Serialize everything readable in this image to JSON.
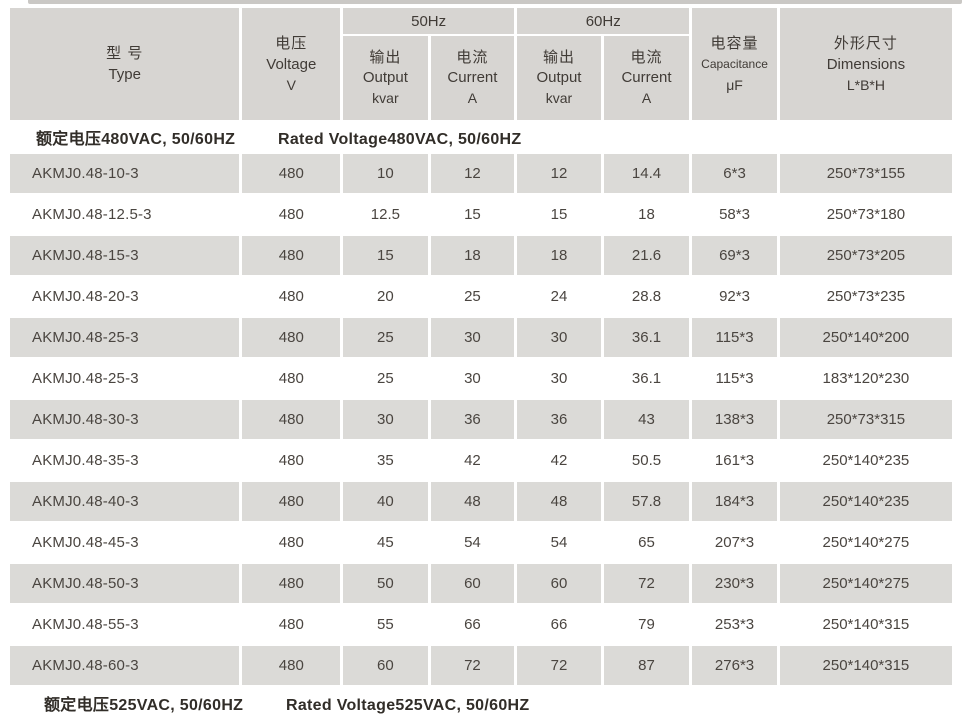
{
  "document": {
    "colors": {
      "header_bg": "#d7d5d2",
      "row_alt_bg": "#dbdad7",
      "row_bg": "#ffffff",
      "header_text": "#403b36",
      "body_text": "#4a4540",
      "section_text": "#312d28",
      "scan_edge_line": "#cac8c5"
    },
    "table": {
      "header": {
        "type_cn": "型 号",
        "type_en": "Type",
        "voltage_cn": "电压",
        "voltage_en": "Voltage",
        "voltage_unit": "V",
        "freq_50": "50Hz",
        "freq_60": "60Hz",
        "output_cn": "输出",
        "output_en": "Output",
        "output_unit": "kvar",
        "current_cn": "电流",
        "current_en": "Current",
        "current_unit": "A",
        "capacitance_cn": "电容量",
        "capacitance_en": "Capacitance",
        "capacitance_unit": "μF",
        "dimensions_cn": "外形尺寸",
        "dimensions_en": "Dimensions",
        "dimensions_unit": "L*B*H"
      },
      "section_480": {
        "cn": "额定电压480VAC, 50/60HZ",
        "en": "Rated Voltage480VAC, 50/60HZ"
      },
      "section_525": {
        "cn": "额定电压525VAC, 50/60HZ",
        "en": "Rated Voltage525VAC, 50/60HZ"
      },
      "rows": [
        [
          "AKMJ0.48-10-3",
          "480",
          "10",
          "12",
          "12",
          "14.4",
          "6*3",
          "250*73*155"
        ],
        [
          "AKMJ0.48-12.5-3",
          "480",
          "12.5",
          "15",
          "15",
          "18",
          "58*3",
          "250*73*180"
        ],
        [
          "AKMJ0.48-15-3",
          "480",
          "15",
          "18",
          "18",
          "21.6",
          "69*3",
          "250*73*205"
        ],
        [
          "AKMJ0.48-20-3",
          "480",
          "20",
          "25",
          "24",
          "28.8",
          "92*3",
          "250*73*235"
        ],
        [
          "AKMJ0.48-25-3",
          "480",
          "25",
          "30",
          "30",
          "36.1",
          "115*3",
          "250*140*200"
        ],
        [
          "AKMJ0.48-25-3",
          "480",
          "25",
          "30",
          "30",
          "36.1",
          "115*3",
          "183*120*230"
        ],
        [
          "AKMJ0.48-30-3",
          "480",
          "30",
          "36",
          "36",
          "43",
          "138*3",
          "250*73*315"
        ],
        [
          "AKMJ0.48-35-3",
          "480",
          "35",
          "42",
          "42",
          "50.5",
          "161*3",
          "250*140*235"
        ],
        [
          "AKMJ0.48-40-3",
          "480",
          "40",
          "48",
          "48",
          "57.8",
          "184*3",
          "250*140*235"
        ],
        [
          "AKMJ0.48-45-3",
          "480",
          "45",
          "54",
          "54",
          "65",
          "207*3",
          "250*140*275"
        ],
        [
          "AKMJ0.48-50-3",
          "480",
          "50",
          "60",
          "60",
          "72",
          "230*3",
          "250*140*275"
        ],
        [
          "AKMJ0.48-55-3",
          "480",
          "55",
          "66",
          "66",
          "79",
          "253*3",
          "250*140*315"
        ],
        [
          "AKMJ0.48-60-3",
          "480",
          "60",
          "72",
          "72",
          "87",
          "276*3",
          "250*140*315"
        ]
      ]
    }
  }
}
